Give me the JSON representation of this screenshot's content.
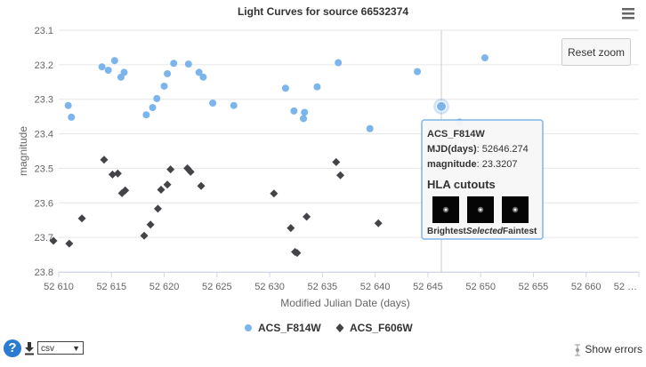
{
  "chart_data": {
    "type": "scatter",
    "title": "Light Curves for source 66532374",
    "xlabel": "Modified Julian Date (days)",
    "ylabel": "magnitude",
    "xlim": [
      52610,
      52665
    ],
    "ylim": [
      23.1,
      23.8
    ],
    "y_reversed": true,
    "x_ticks": [
      "52 610",
      "52 615",
      "52 620",
      "52 625",
      "52 630",
      "52 635",
      "52 640",
      "52 645",
      "52 650",
      "52 655",
      "52 660",
      "52 …"
    ],
    "x_tick_values": [
      52610,
      52615,
      52620,
      52625,
      52630,
      52635,
      52640,
      52645,
      52650,
      52655,
      52660,
      52665
    ],
    "y_ticks": [
      "23.1",
      "23.2",
      "23.3",
      "23.4",
      "23.5",
      "23.6",
      "23.7",
      "23.8"
    ],
    "y_tick_values": [
      23.1,
      23.2,
      23.3,
      23.4,
      23.5,
      23.6,
      23.7,
      23.8
    ],
    "grid": true,
    "legend_position": "bottom-center",
    "series": [
      {
        "name": "ACS_F814W",
        "color": "#7cb5ec",
        "marker": "circle",
        "points": [
          [
            52610.9,
            23.318
          ],
          [
            52611.2,
            23.352
          ],
          [
            52614.1,
            23.206
          ],
          [
            52614.7,
            23.216
          ],
          [
            52615.3,
            23.188
          ],
          [
            52615.9,
            23.236
          ],
          [
            52616.2,
            23.222
          ],
          [
            52618.3,
            23.345
          ],
          [
            52618.9,
            23.324
          ],
          [
            52619.3,
            23.298
          ],
          [
            52620.0,
            23.262
          ],
          [
            52620.3,
            23.226
          ],
          [
            52620.9,
            23.196
          ],
          [
            52622.3,
            23.198
          ],
          [
            52623.3,
            23.222
          ],
          [
            52623.7,
            23.236
          ],
          [
            52624.6,
            23.311
          ],
          [
            52626.6,
            23.318
          ],
          [
            52631.5,
            23.268
          ],
          [
            52632.3,
            23.334
          ],
          [
            52633.2,
            23.356
          ],
          [
            52633.3,
            23.338
          ],
          [
            52634.5,
            23.264
          ],
          [
            52636.5,
            23.194
          ],
          [
            52639.5,
            23.385
          ],
          [
            52644.0,
            23.22
          ],
          [
            52646.274,
            23.3207
          ],
          [
            52648.0,
            23.366
          ],
          [
            52650.4,
            23.18
          ]
        ]
      },
      {
        "name": "ACS_F606W",
        "color": "#434348",
        "marker": "diamond",
        "points": [
          [
            52609.5,
            23.71
          ],
          [
            52611.0,
            23.718
          ],
          [
            52612.2,
            23.645
          ],
          [
            52614.3,
            23.475
          ],
          [
            52615.1,
            23.518
          ],
          [
            52615.6,
            23.515
          ],
          [
            52616.0,
            23.572
          ],
          [
            52616.3,
            23.564
          ],
          [
            52618.1,
            23.695
          ],
          [
            52618.7,
            23.663
          ],
          [
            52619.4,
            23.617
          ],
          [
            52619.7,
            23.562
          ],
          [
            52620.3,
            23.547
          ],
          [
            52620.6,
            23.503
          ],
          [
            52622.2,
            23.5
          ],
          [
            52622.5,
            23.51
          ],
          [
            52623.5,
            23.551
          ],
          [
            52630.4,
            23.573
          ],
          [
            52632.0,
            23.673
          ],
          [
            52632.4,
            23.742
          ],
          [
            52632.6,
            23.745
          ],
          [
            52633.5,
            23.64
          ],
          [
            52636.3,
            23.482
          ],
          [
            52636.7,
            23.52
          ],
          [
            52640.3,
            23.659
          ],
          [
            52650.0,
            23.493
          ]
        ]
      }
    ],
    "tooltip": {
      "series": "ACS_F814W",
      "mjd_label": "MJD(days)",
      "mjd_value": "52646.274",
      "mag_label": "magnitude",
      "mag_value": "23.3207",
      "cutouts_title": "HLA cutouts",
      "cutout_labels": [
        "Brightest",
        "Selected",
        "Faintest"
      ]
    },
    "crosshair_x": 52646.274
  },
  "ui": {
    "reset_zoom_label": "Reset zoom",
    "menu_icon": "hamburger-menu-icon",
    "help_label": "?",
    "download_icon": "download-icon",
    "format_value": "csv",
    "show_errors_label": "Show errors",
    "show_errors_icon": "error-bar-icon"
  }
}
